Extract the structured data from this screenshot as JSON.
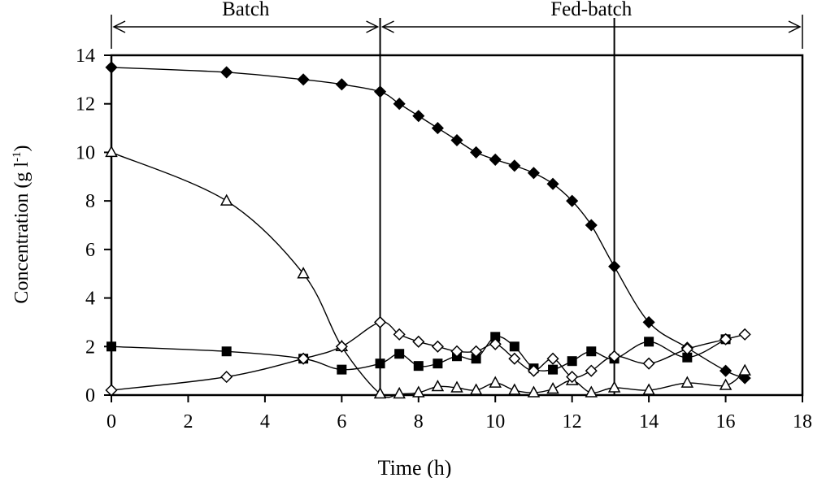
{
  "chart_data": {
    "type": "line",
    "xlabel": "Time (h)",
    "ylabel_main": "Concentration (g l",
    "ylabel_sup": "-1",
    "ylabel_close": ")",
    "xlim": [
      0,
      18
    ],
    "ylim": [
      0,
      14
    ],
    "xticks": [
      0,
      2,
      4,
      6,
      8,
      10,
      12,
      14,
      16,
      18
    ],
    "yticks": [
      0,
      2,
      4,
      6,
      8,
      10,
      12,
      14
    ],
    "grid": false,
    "legend": "none",
    "phases": [
      {
        "label": "Batch",
        "from": 0,
        "to": 7
      },
      {
        "label": "Fed-batch",
        "from": 7,
        "to": 18
      }
    ],
    "vertical_lines": [
      7,
      13.1
    ],
    "series": [
      {
        "marker": "filled-diamond",
        "points": [
          [
            0,
            13.5
          ],
          [
            3,
            13.3
          ],
          [
            5,
            13.0
          ],
          [
            6,
            12.8
          ],
          [
            7,
            12.5
          ],
          [
            7.5,
            12.0
          ],
          [
            8,
            11.5
          ],
          [
            8.5,
            11.0
          ],
          [
            9,
            10.5
          ],
          [
            9.5,
            10.0
          ],
          [
            10,
            9.7
          ],
          [
            10.5,
            9.45
          ],
          [
            11,
            9.15
          ],
          [
            11.5,
            8.7
          ],
          [
            12,
            8.0
          ],
          [
            12.5,
            7.0
          ],
          [
            13.1,
            5.3
          ],
          [
            14,
            3.0
          ],
          [
            15,
            1.95
          ],
          [
            16,
            1.0
          ],
          [
            16.5,
            0.7
          ]
        ]
      },
      {
        "marker": "open-triangle",
        "points": [
          [
            0,
            10.0
          ],
          [
            3,
            8.0
          ],
          [
            5,
            5.0
          ],
          [
            6,
            2.0
          ],
          [
            7,
            0.05
          ],
          [
            7.5,
            0.05
          ],
          [
            8,
            0.1
          ],
          [
            8.5,
            0.35
          ],
          [
            9,
            0.3
          ],
          [
            9.5,
            0.2
          ],
          [
            10,
            0.5
          ],
          [
            10.5,
            0.2
          ],
          [
            11,
            0.1
          ],
          [
            11.5,
            0.25
          ],
          [
            12,
            0.6
          ],
          [
            12.5,
            0.1
          ],
          [
            13.1,
            0.3
          ],
          [
            14,
            0.2
          ],
          [
            15,
            0.5
          ],
          [
            16,
            0.4
          ],
          [
            16.5,
            1.0
          ]
        ]
      },
      {
        "marker": "filled-square",
        "points": [
          [
            0,
            2.0
          ],
          [
            3,
            1.8
          ],
          [
            5,
            1.5
          ],
          [
            6,
            1.05
          ],
          [
            7,
            1.3
          ],
          [
            7.5,
            1.7
          ],
          [
            8,
            1.2
          ],
          [
            8.5,
            1.3
          ],
          [
            9,
            1.6
          ],
          [
            9.5,
            1.5
          ],
          [
            10,
            2.4
          ],
          [
            10.5,
            2.0
          ],
          [
            11,
            1.1
          ],
          [
            11.5,
            1.05
          ],
          [
            12,
            1.4
          ],
          [
            12.5,
            1.8
          ],
          [
            13.1,
            1.5
          ],
          [
            14,
            2.2
          ],
          [
            15,
            1.55
          ],
          [
            16,
            2.3
          ]
        ]
      },
      {
        "marker": "open-diamond",
        "points": [
          [
            0,
            0.2
          ],
          [
            3,
            0.75
          ],
          [
            5,
            1.5
          ],
          [
            6,
            2.0
          ],
          [
            7,
            3.0
          ],
          [
            7.5,
            2.5
          ],
          [
            8,
            2.2
          ],
          [
            8.5,
            2.0
          ],
          [
            9,
            1.8
          ],
          [
            9.5,
            1.8
          ],
          [
            10,
            2.1
          ],
          [
            10.5,
            1.5
          ],
          [
            11,
            1.0
          ],
          [
            11.5,
            1.5
          ],
          [
            12,
            0.75
          ],
          [
            12.5,
            1.0
          ],
          [
            13.1,
            1.6
          ],
          [
            14,
            1.3
          ],
          [
            15,
            1.9
          ],
          [
            16,
            2.3
          ],
          [
            16.5,
            2.5
          ]
        ]
      }
    ]
  }
}
